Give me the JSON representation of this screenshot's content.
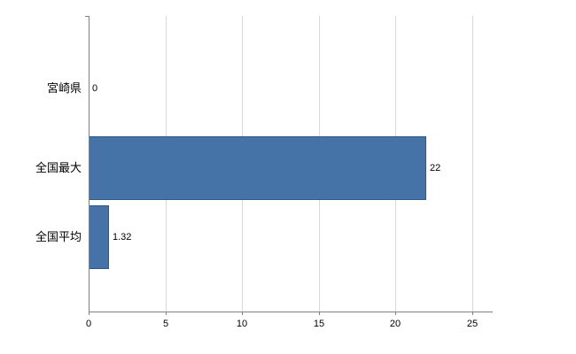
{
  "chart_data": {
    "type": "bar",
    "orientation": "horizontal",
    "title": "",
    "categories": [
      "宮崎県",
      "全国最大",
      "全国平均"
    ],
    "values": [
      0,
      22,
      1.32
    ],
    "value_labels": [
      "0",
      "22",
      "1.32"
    ],
    "xlim": [
      0,
      26.3
    ],
    "ticks": [
      0,
      5,
      10,
      15,
      20,
      25
    ],
    "tick_labels": [
      "0",
      "5",
      "10",
      "15",
      "20",
      "25"
    ],
    "grid": true,
    "legend": false,
    "colors": {
      "bar_fill": "#4572a7",
      "bar_border": "#2f5a87",
      "grid": "#d8d8d8",
      "axis": "#808080",
      "text": "#000000"
    }
  }
}
